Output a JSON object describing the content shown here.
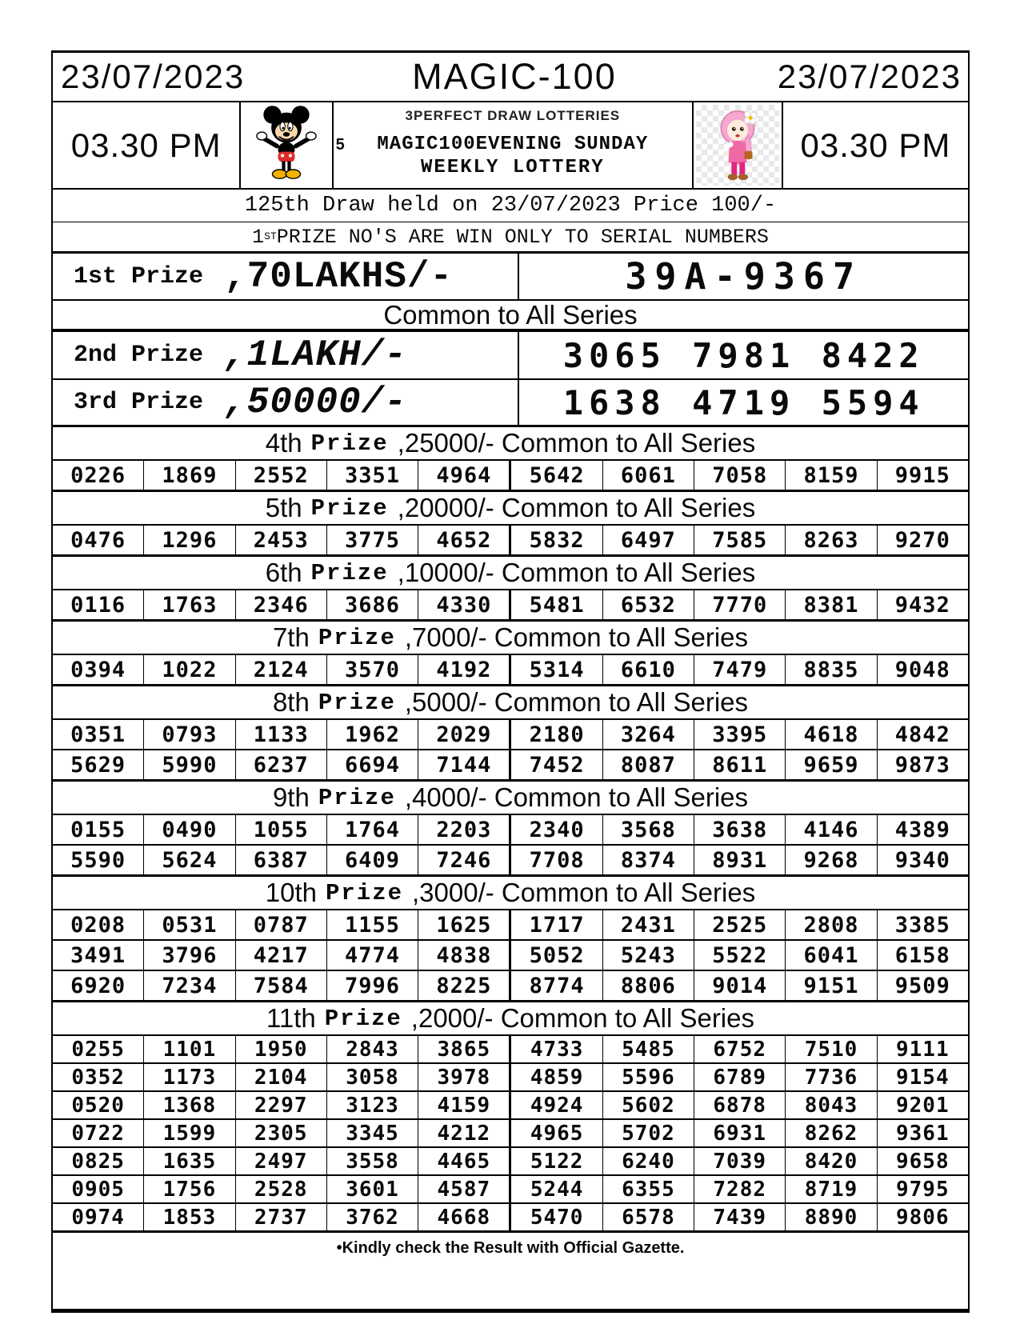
{
  "page": {
    "header": {
      "date_left": "23/07/2023",
      "title": "MAGIC-100",
      "date_right": "23/07/2023",
      "time_left": "03.30 PM",
      "time_right": "03.30 PM",
      "mickey_number": "5",
      "agency_line": "3PERFECT DRAW LOTTERIES",
      "lottery_line1": "MAGIC100EVENING SUNDAY",
      "lottery_line2": "WEEKLY LOTTERY"
    },
    "draw_line": "125th Draw held on 23/07/2023 Price 100/-",
    "serial_note": {
      "prefix": "1",
      "sup": "ST",
      "rest": "PRIZE NO'S ARE WIN ONLY TO SERIAL NUMBERS"
    },
    "top_prizes": [
      {
        "label": "1st Prize",
        "amount": ",70LAKHS/-",
        "numbers": "39A-9367"
      },
      {
        "label": "2nd Prize",
        "amount": ",1LAKH/-",
        "numbers": "3065 7981 8422"
      },
      {
        "label": "3rd Prize",
        "amount": ",50000/-",
        "numbers": "1638 4719 5594"
      }
    ],
    "common_note": "Common to All Series",
    "sections": [
      {
        "ordinal": "4th",
        "word": "Prize",
        "rest": ",25000/- Common to All Series",
        "rows": [
          [
            "0226",
            "1869",
            "2552",
            "3351",
            "4964",
            "5642",
            "6061",
            "7058",
            "8159",
            "9915"
          ]
        ]
      },
      {
        "ordinal": "5th",
        "word": "Prize",
        "rest": ",20000/- Common to All Series",
        "rows": [
          [
            "0476",
            "1296",
            "2453",
            "3775",
            "4652",
            "5832",
            "6497",
            "7585",
            "8263",
            "9270"
          ]
        ]
      },
      {
        "ordinal": "6th",
        "word": "Prize",
        "rest": ",10000/- Common to All Series",
        "rows": [
          [
            "0116",
            "1763",
            "2346",
            "3686",
            "4330",
            "5481",
            "6532",
            "7770",
            "8381",
            "9432"
          ]
        ]
      },
      {
        "ordinal": "7th",
        "word": "Prize",
        "rest": ",7000/- Common to All Series",
        "rows": [
          [
            "0394",
            "1022",
            "2124",
            "3570",
            "4192",
            "5314",
            "6610",
            "7479",
            "8835",
            "9048"
          ]
        ]
      },
      {
        "ordinal": "8th",
        "word": "Prize",
        "rest": ",5000/- Common to All Series",
        "rows": [
          [
            "0351",
            "0793",
            "1133",
            "1962",
            "2029",
            "2180",
            "3264",
            "3395",
            "4618",
            "4842"
          ],
          [
            "5629",
            "5990",
            "6237",
            "6694",
            "7144",
            "7452",
            "8087",
            "8611",
            "9659",
            "9873"
          ]
        ]
      },
      {
        "ordinal": "9th",
        "word": "Prize",
        "rest": ",4000/- Common to All Series",
        "rows": [
          [
            "0155",
            "0490",
            "1055",
            "1764",
            "2203",
            "2340",
            "3568",
            "3638",
            "4146",
            "4389"
          ],
          [
            "5590",
            "5624",
            "6387",
            "6409",
            "7246",
            "7708",
            "8374",
            "8931",
            "9268",
            "9340"
          ]
        ]
      },
      {
        "ordinal": "10th",
        "word": "Prize",
        "rest": ",3000/- Common to All Series",
        "rows": [
          [
            "0208",
            "0531",
            "0787",
            "1155",
            "1625",
            "1717",
            "2431",
            "2525",
            "2808",
            "3385"
          ],
          [
            "3491",
            "3796",
            "4217",
            "4774",
            "4838",
            "5052",
            "5243",
            "5522",
            "6041",
            "6158"
          ],
          [
            "6920",
            "7234",
            "7584",
            "7996",
            "8225",
            "8774",
            "8806",
            "9014",
            "9151",
            "9509"
          ]
        ]
      },
      {
        "ordinal": "11th",
        "word": "Prize",
        "rest": ",2000/- Common to All Series",
        "rows": [
          [
            "0255",
            "1101",
            "1950",
            "2843",
            "3865",
            "4733",
            "5485",
            "6752",
            "7510",
            "9111"
          ],
          [
            "0352",
            "1173",
            "2104",
            "3058",
            "3978",
            "4859",
            "5596",
            "6789",
            "7736",
            "9154"
          ],
          [
            "0520",
            "1368",
            "2297",
            "3123",
            "4159",
            "4924",
            "5602",
            "6878",
            "8043",
            "9201"
          ],
          [
            "0722",
            "1599",
            "2305",
            "3345",
            "4212",
            "4965",
            "5702",
            "6931",
            "8262",
            "9361"
          ],
          [
            "0825",
            "1635",
            "2497",
            "3558",
            "4465",
            "5122",
            "6240",
            "7039",
            "8420",
            "9658"
          ],
          [
            "0905",
            "1756",
            "2528",
            "3601",
            "4587",
            "5244",
            "6355",
            "7282",
            "8719",
            "9795"
          ],
          [
            "0974",
            "1853",
            "2737",
            "3762",
            "4668",
            "5470",
            "6578",
            "7439",
            "8890",
            "9806"
          ]
        ]
      }
    ],
    "footer_note": "•Kindly check the Result with Official Gazette.",
    "colors": {
      "ink": "#0a0a0a",
      "mickey_red": "#e02a2a",
      "mickey_yellow": "#f2b200",
      "girl_hijab_pink": "#f6a8d0",
      "girl_dress_pink": "#ef6aa5",
      "girl_pants_pink": "#e2257e"
    }
  }
}
